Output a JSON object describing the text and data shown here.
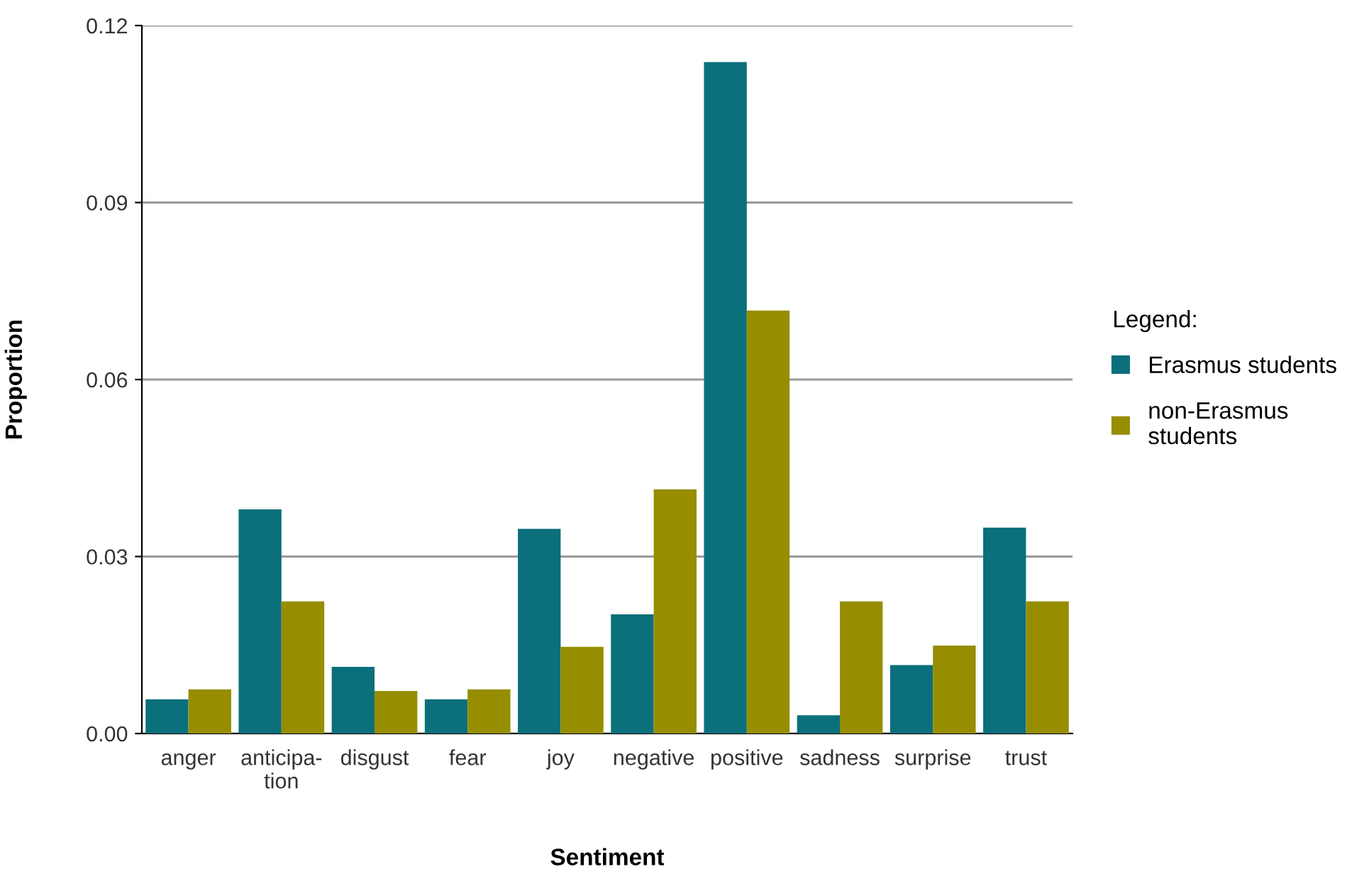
{
  "chart_data": {
    "type": "bar",
    "xlabel": "Sentiment",
    "ylabel": "Proportion",
    "legend_title": "Legend:",
    "categories": [
      "anger",
      "anticipa-\ntion",
      "disgust",
      "fear",
      "joy",
      "negative",
      "positive",
      "sadness",
      "surprise",
      "trust"
    ],
    "series": [
      {
        "name": "Erasmus students",
        "color": "#0b6f7c",
        "values": [
          0.0058,
          0.038,
          0.0113,
          0.0058,
          0.0347,
          0.0202,
          0.1138,
          0.0031,
          0.0116,
          0.0349
        ]
      },
      {
        "name": "non-Erasmus\nstudents",
        "color": "#968e00",
        "values": [
          0.0075,
          0.0224,
          0.0072,
          0.0075,
          0.0147,
          0.0414,
          0.0717,
          0.0224,
          0.0149,
          0.0224
        ]
      }
    ],
    "ylim": [
      0,
      0.12
    ],
    "yticks": [
      {
        "value": 0,
        "label": "0.00"
      },
      {
        "value": 0.03,
        "label": "0.03"
      },
      {
        "value": 0.06,
        "label": "0.06"
      },
      {
        "value": 0.09,
        "label": "0.09"
      },
      {
        "value": 0.12,
        "label": "0.12"
      }
    ],
    "grid": "y",
    "legend": "right"
  }
}
